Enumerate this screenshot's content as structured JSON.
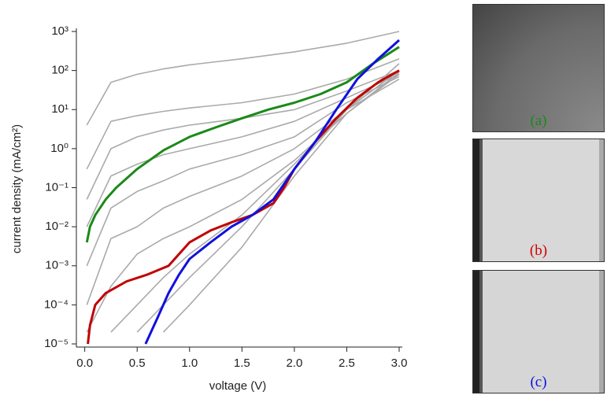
{
  "chart_data": {
    "type": "line",
    "xlabel": "voltage (V)",
    "ylabel": "current density (mA/cm²)",
    "xlim": [
      -0.08,
      3.0
    ],
    "xticks": [
      {
        "value": 0,
        "label": "0.0"
      },
      0.5,
      {
        "value": 1,
        "label": "1.0"
      },
      1.5,
      {
        "value": 2,
        "label": "2.0"
      },
      2.5,
      {
        "value": 3,
        "label": "3.0"
      }
    ],
    "ylim": [
      1e-05,
      1000
    ],
    "ylog": true,
    "yticks": [
      {
        "value": 1000,
        "label": "10³"
      },
      {
        "value": 100,
        "label": "10²"
      },
      {
        "value": 10,
        "label": "10¹"
      },
      {
        "value": 1,
        "label": "10⁰"
      },
      {
        "value": 0.1,
        "label": "10⁻¹"
      },
      {
        "value": 0.01,
        "label": "10⁻²"
      },
      {
        "value": 0.001,
        "label": "10⁻³"
      },
      {
        "value": 0.0001,
        "label": "10⁻⁴"
      },
      {
        "value": 1e-05,
        "label": "10⁻⁵"
      }
    ],
    "series": [
      {
        "color": "#aaaaaa",
        "x": [
          0.02,
          0.25,
          0.5,
          0.75,
          1.0,
          1.5,
          2.0,
          2.5,
          3.0
        ],
        "values": [
          4,
          50,
          80,
          110,
          140,
          200,
          300,
          500,
          1000
        ]
      },
      {
        "color": "#aaaaaa",
        "x": [
          0.02,
          0.25,
          0.5,
          0.75,
          1.0,
          1.5,
          2.0,
          2.5,
          3.0
        ],
        "values": [
          0.3,
          5,
          7,
          9,
          11,
          15,
          25,
          60,
          200
        ]
      },
      {
        "color": "#aaaaaa",
        "x": [
          0.02,
          0.25,
          0.5,
          0.75,
          1.0,
          1.5,
          2.0,
          2.5,
          3.0
        ],
        "values": [
          0.05,
          1,
          2,
          3,
          4,
          6,
          10,
          30,
          100
        ]
      },
      {
        "color": "#aaaaaa",
        "x": [
          0.02,
          0.25,
          0.5,
          0.75,
          1.0,
          1.5,
          2.0,
          2.5,
          3.0
        ],
        "values": [
          0.01,
          0.2,
          0.4,
          0.7,
          1,
          2,
          5,
          20,
          80
        ]
      },
      {
        "color": "#aaaaaa",
        "x": [
          0.02,
          0.25,
          0.5,
          0.75,
          1.0,
          1.5,
          2.0,
          2.5,
          3.0
        ],
        "values": [
          0.001,
          0.03,
          0.08,
          0.15,
          0.3,
          0.7,
          2,
          15,
          70
        ]
      },
      {
        "color": "#aaaaaa",
        "x": [
          0.02,
          0.25,
          0.5,
          0.75,
          1.0,
          1.5,
          2.0,
          2.5,
          3.0
        ],
        "values": [
          0.0001,
          0.005,
          0.01,
          0.03,
          0.06,
          0.2,
          1,
          10,
          60
        ]
      },
      {
        "color": "#aaaaaa",
        "x": [
          0.02,
          0.25,
          0.5,
          0.75,
          1.0,
          1.5,
          2.0,
          2.5,
          3.0
        ],
        "values": [
          2e-05,
          0.0003,
          0.002,
          0.005,
          0.01,
          0.05,
          0.5,
          8,
          80
        ]
      },
      {
        "color": "#aaaaaa",
        "x": [
          0.02,
          0.25,
          0.5,
          0.75,
          1.0,
          1.5,
          2.0,
          2.5,
          3.0
        ],
        "values": [
          null,
          2e-05,
          0.0001,
          0.0005,
          0.002,
          0.02,
          0.4,
          10,
          100
        ]
      },
      {
        "color": "#aaaaaa",
        "x": [
          0.02,
          0.25,
          0.5,
          0.75,
          1.0,
          1.5,
          2.0,
          2.5,
          3.0
        ],
        "values": [
          null,
          null,
          2e-05,
          0.0001,
          0.0005,
          0.01,
          0.3,
          10,
          150
        ]
      },
      {
        "color": "#aaaaaa",
        "x": [
          0.02,
          0.25,
          0.5,
          0.75,
          1.0,
          1.5,
          2.0,
          2.5,
          3.0
        ],
        "values": [
          null,
          null,
          null,
          2e-05,
          0.0001,
          0.003,
          0.2,
          8,
          90
        ]
      },
      {
        "color": "#1a8a1a",
        "x": [
          0.02,
          0.05,
          0.1,
          0.2,
          0.3,
          0.5,
          0.75,
          1.0,
          1.25,
          1.5,
          1.75,
          2.0,
          2.25,
          2.5,
          2.75,
          3.0
        ],
        "values": [
          0.004,
          0.01,
          0.02,
          0.05,
          0.1,
          0.3,
          0.9,
          2,
          3.5,
          6,
          10,
          15,
          25,
          50,
          150,
          400
        ]
      },
      {
        "color": "#c00000",
        "x": [
          0.03,
          0.05,
          0.1,
          0.2,
          0.4,
          0.6,
          0.8,
          0.9,
          1.0,
          1.2,
          1.4,
          1.6,
          1.8,
          1.9,
          2.0,
          2.2,
          2.4,
          2.6,
          2.8,
          3.0
        ],
        "values": [
          1e-05,
          3e-05,
          0.0001,
          0.0002,
          0.0004,
          0.0006,
          0.001,
          0.002,
          0.004,
          0.008,
          0.013,
          0.02,
          0.04,
          0.1,
          0.3,
          1.5,
          6,
          20,
          50,
          100
        ]
      },
      {
        "color": "#1010e0",
        "x": [
          0.58,
          0.7,
          0.8,
          0.9,
          1.0,
          1.2,
          1.4,
          1.6,
          1.8,
          2.0,
          2.2,
          2.4,
          2.6,
          2.8,
          3.0
        ],
        "values": [
          1e-05,
          5e-05,
          0.0002,
          0.0006,
          0.0015,
          0.004,
          0.01,
          0.02,
          0.05,
          0.3,
          1.5,
          10,
          60,
          200,
          600
        ]
      }
    ]
  },
  "images": [
    {
      "label": "(a)",
      "color": "#1a8a1a"
    },
    {
      "label": "(b)",
      "color": "#d00000"
    },
    {
      "label": "(c)",
      "color": "#1010e0"
    }
  ]
}
